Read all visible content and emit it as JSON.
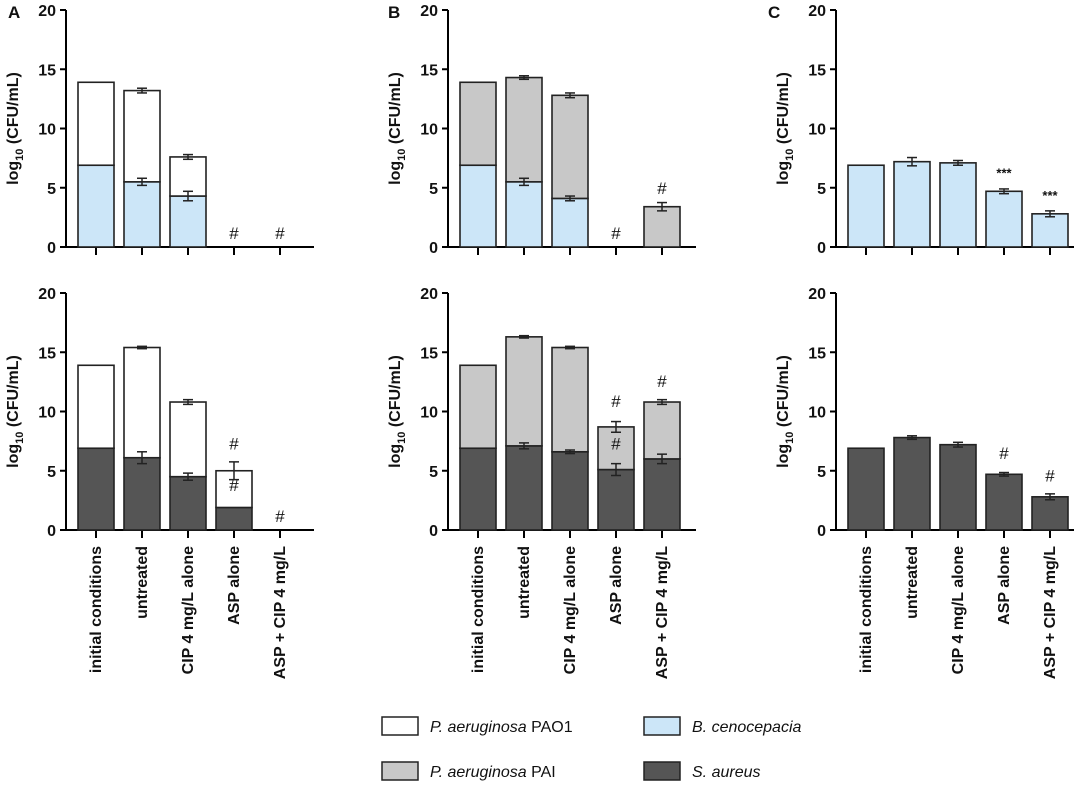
{
  "chart_data": [
    {
      "id": "A-top",
      "panel": "A",
      "type": "stacked-bar",
      "ylabel": "log10 (CFU/mL)",
      "ylim": [
        0,
        20
      ],
      "yticks": [
        0,
        5,
        10,
        15,
        20
      ],
      "categories": [
        "initial conditions",
        "untreated",
        "CIP 4 mg/L alone",
        "ASP alone",
        "ASP + CIP 4 mg/L"
      ],
      "series": [
        {
          "name": "B. cenocepacia",
          "color": "#cce6f8",
          "values": [
            6.9,
            5.5,
            4.3,
            0,
            0
          ],
          "errors": [
            0,
            0.3,
            0.4,
            0,
            0
          ]
        },
        {
          "name": "P. aeruginosa PAO1",
          "color": "#ffffff",
          "values": [
            7.0,
            7.7,
            3.3,
            0,
            0
          ],
          "totals_error": [
            0,
            0.2,
            0.2,
            0,
            0
          ]
        }
      ],
      "annotations": [
        {
          "category": 3,
          "y": 0,
          "text": "#"
        },
        {
          "category": 4,
          "y": 0,
          "text": "#"
        }
      ]
    },
    {
      "id": "B-top",
      "panel": "B",
      "type": "stacked-bar",
      "ylabel": "log10 (CFU/mL)",
      "ylim": [
        0,
        20
      ],
      "yticks": [
        0,
        5,
        10,
        15,
        20
      ],
      "categories": [
        "initial conditions",
        "untreated",
        "CIP 4 mg/L alone",
        "ASP alone",
        "ASP + CIP 4 mg/L"
      ],
      "series": [
        {
          "name": "B. cenocepacia",
          "color": "#cce6f8",
          "values": [
            6.9,
            5.5,
            4.1,
            0,
            0
          ],
          "errors": [
            0,
            0.3,
            0.2,
            0,
            0
          ]
        },
        {
          "name": "P. aeruginosa PAI",
          "color": "#c8c8c8",
          "values": [
            7.0,
            8.8,
            8.7,
            0,
            3.4
          ],
          "totals_error": [
            0,
            0.15,
            0.2,
            0,
            0.35
          ]
        }
      ],
      "annotations": [
        {
          "category": 3,
          "y": 0,
          "text": "#"
        },
        {
          "category": 4,
          "y": 3.8,
          "text": "#"
        }
      ]
    },
    {
      "id": "C-top",
      "panel": "C",
      "type": "bar",
      "ylabel": "log10 (CFU/mL)",
      "ylim": [
        0,
        20
      ],
      "yticks": [
        0,
        5,
        10,
        15,
        20
      ],
      "categories": [
        "initial conditions",
        "untreated",
        "CIP 4 mg/L alone",
        "ASP alone",
        "ASP + CIP 4 mg/L"
      ],
      "series": [
        {
          "name": "B. cenocepacia",
          "color": "#cce6f8",
          "values": [
            6.9,
            7.2,
            7.1,
            4.7,
            2.8
          ],
          "errors": [
            0,
            0.35,
            0.2,
            0.2,
            0.25
          ]
        }
      ],
      "annotations": [
        {
          "category": 3,
          "y": 5.2,
          "text": "***",
          "stars": true
        },
        {
          "category": 4,
          "y": 3.3,
          "text": "***",
          "stars": true
        }
      ]
    },
    {
      "id": "A-bottom",
      "panel": "A",
      "type": "stacked-bar",
      "ylabel": "log10 (CFU/mL)",
      "ylim": [
        0,
        20
      ],
      "yticks": [
        0,
        5,
        10,
        15,
        20
      ],
      "categories": [
        "initial conditions",
        "untreated",
        "CIP 4 mg/L alone",
        "ASP alone",
        "ASP + CIP 4 mg/L"
      ],
      "series": [
        {
          "name": "S. aureus",
          "color": "#555555",
          "values": [
            6.9,
            6.1,
            4.5,
            1.9,
            0
          ],
          "errors": [
            0,
            0.5,
            0.3,
            0,
            0
          ]
        },
        {
          "name": "P. aeruginosa PAO1",
          "color": "#ffffff",
          "values": [
            7.0,
            9.3,
            6.3,
            3.1,
            0
          ],
          "totals_error": [
            0,
            0.1,
            0.2,
            0.75,
            0
          ]
        }
      ],
      "annotations": [
        {
          "category": 3,
          "y": 2.6,
          "text": "#"
        },
        {
          "category": 3,
          "y": 6.1,
          "text": "#"
        },
        {
          "category": 4,
          "y": 0,
          "text": "#"
        }
      ]
    },
    {
      "id": "B-bottom",
      "panel": "B",
      "type": "stacked-bar",
      "ylabel": "log10 (CFU/mL)",
      "ylim": [
        0,
        20
      ],
      "yticks": [
        0,
        5,
        10,
        15,
        20
      ],
      "categories": [
        "initial conditions",
        "untreated",
        "CIP 4 mg/L alone",
        "ASP alone",
        "ASP + CIP 4 mg/L"
      ],
      "series": [
        {
          "name": "S. aureus",
          "color": "#555555",
          "values": [
            6.9,
            7.1,
            6.6,
            5.1,
            6.0
          ],
          "errors": [
            0,
            0.25,
            0.15,
            0.5,
            0.4
          ]
        },
        {
          "name": "P. aeruginosa PAI",
          "color": "#c8c8c8",
          "values": [
            7.0,
            9.2,
            8.8,
            3.6,
            4.8
          ],
          "totals_error": [
            0,
            0.1,
            0.1,
            0.45,
            0.2
          ]
        }
      ],
      "annotations": [
        {
          "category": 3,
          "y": 6.1,
          "text": "#"
        },
        {
          "category": 3,
          "y": 9.7,
          "text": "#"
        },
        {
          "category": 4,
          "y": 11.4,
          "text": "#"
        }
      ]
    },
    {
      "id": "C-bottom",
      "panel": "C",
      "type": "bar",
      "ylabel": "log10 (CFU/mL)",
      "ylim": [
        0,
        20
      ],
      "yticks": [
        0,
        5,
        10,
        15,
        20
      ],
      "categories": [
        "initial conditions",
        "untreated",
        "CIP 4 mg/L alone",
        "ASP alone",
        "ASP + CIP 4 mg/L"
      ],
      "series": [
        {
          "name": "S. aureus",
          "color": "#555555",
          "values": [
            6.9,
            7.8,
            7.2,
            4.7,
            2.8
          ],
          "errors": [
            0,
            0.15,
            0.2,
            0.15,
            0.25
          ]
        }
      ],
      "annotations": [
        {
          "category": 3,
          "y": 5.3,
          "text": "#"
        },
        {
          "category": 4,
          "y": 3.4,
          "text": "#"
        }
      ]
    }
  ],
  "panel_labels": [
    "A",
    "B",
    "C"
  ],
  "ylabel_parts": {
    "base": "log",
    "sub": "10",
    "rest": " (CFU/mL)"
  },
  "legend": [
    {
      "italic": "P. aeruginosa",
      "plain": " PAO1",
      "color": "#ffffff"
    },
    {
      "italic": "B. cenocepacia",
      "plain": "",
      "color": "#cce6f8"
    },
    {
      "italic": "P. aeruginosa",
      "plain": " PAI",
      "color": "#c8c8c8"
    },
    {
      "italic": "S. aureus",
      "plain": "",
      "color": "#555555"
    }
  ]
}
